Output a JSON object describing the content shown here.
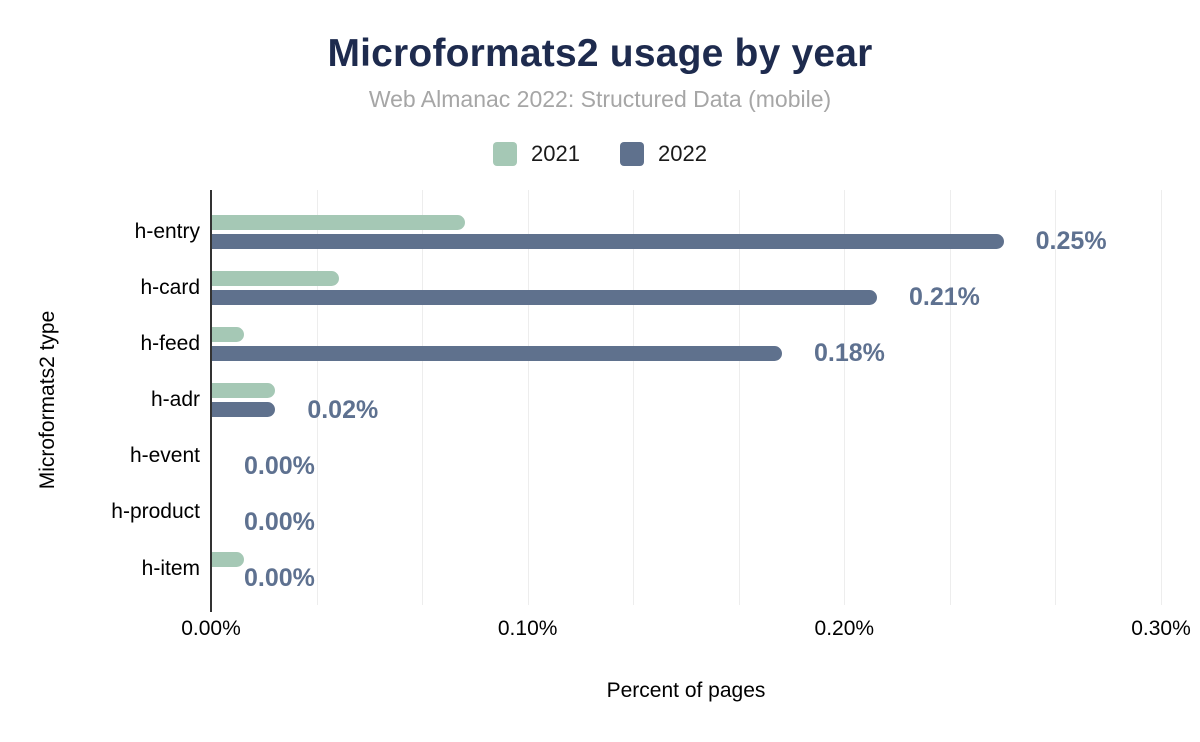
{
  "header": {
    "title": "Microformats2 usage by year",
    "subtitle": "Web Almanac 2022: Structured Data (mobile)"
  },
  "colors": {
    "title": "#1e2b4e",
    "subtitle": "#a6a6a6",
    "series_2021": "#a5c8b5",
    "series_2022": "#5f718d",
    "data_label": "#5e7190",
    "gridline": "#ededed",
    "axis_line": "#333333"
  },
  "chart_data": {
    "type": "bar",
    "orientation": "horizontal",
    "title": "Microformats2 usage by year",
    "subtitle": "Web Almanac 2022: Structured Data (mobile)",
    "categories": [
      "h-entry",
      "h-card",
      "h-feed",
      "h-adr",
      "h-event",
      "h-product",
      "h-item"
    ],
    "series": [
      {
        "name": "2021",
        "color": "#a5c8b5",
        "values": [
          0.08,
          0.04,
          0.01,
          0.02,
          0.0,
          0.0,
          0.01
        ]
      },
      {
        "name": "2022",
        "color": "#5f718d",
        "values": [
          0.25,
          0.21,
          0.18,
          0.02,
          0.0,
          0.0,
          0.0
        ],
        "data_labels": [
          "0.25%",
          "0.21%",
          "0.18%",
          "0.02%",
          "0.00%",
          "0.00%",
          "0.00%"
        ]
      }
    ],
    "xlabel": "Percent of pages",
    "ylabel": "Microformats2 type",
    "units": "%",
    "xlim": [
      0,
      0.3
    ],
    "x_ticks": [
      {
        "value": 0.0,
        "label": "0.00%"
      },
      {
        "value": 0.1,
        "label": "0.10%"
      },
      {
        "value": 0.2,
        "label": "0.20%"
      },
      {
        "value": 0.3,
        "label": "0.30%"
      }
    ],
    "grid": {
      "vertical_intervals": 9,
      "visible": true
    },
    "legend_position": "top",
    "data_labels_series": "2022"
  }
}
